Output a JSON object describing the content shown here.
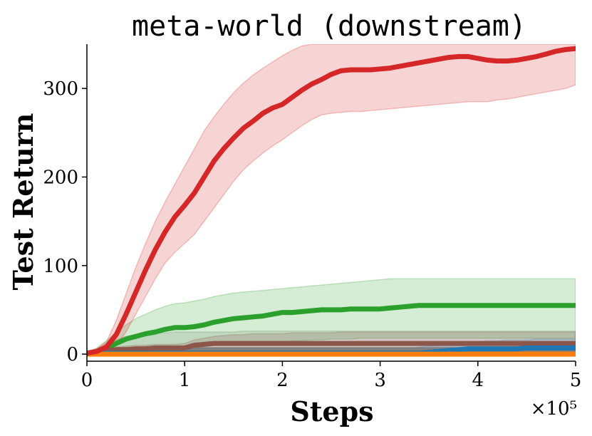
{
  "chart_data": {
    "type": "line",
    "title": "meta-world (downstream)",
    "xlabel": "Steps",
    "ylabel": "Test Return",
    "x_scale_label": "×10⁵",
    "xlim": [
      0,
      5
    ],
    "ylim": [
      -8,
      350
    ],
    "x_ticks": [
      0,
      1,
      2,
      3,
      4,
      5
    ],
    "x_tick_labels": [
      "0",
      "1",
      "2",
      "3",
      "4",
      "5"
    ],
    "y_ticks": [
      0,
      100,
      200,
      300
    ],
    "y_tick_labels": [
      "0",
      "100",
      "200",
      "300"
    ],
    "grid": false,
    "legend": "none",
    "x": [
      0,
      0.1,
      0.2,
      0.3,
      0.4,
      0.5,
      0.6,
      0.7,
      0.8,
      0.9,
      1.0,
      1.1,
      1.2,
      1.3,
      1.4,
      1.5,
      1.6,
      1.7,
      1.8,
      1.9,
      2.0,
      2.1,
      2.2,
      2.3,
      2.4,
      2.5,
      2.6,
      2.7,
      2.8,
      2.9,
      3.0,
      3.1,
      3.2,
      3.3,
      3.4,
      3.5,
      3.6,
      3.7,
      3.8,
      3.9,
      4.0,
      4.1,
      4.2,
      4.3,
      4.4,
      4.5,
      4.6,
      4.7,
      4.8,
      4.9,
      5.0
    ],
    "series": [
      {
        "color": "#7f7f7f",
        "band_opacity": 0.2,
        "values": [
          1,
          2,
          4,
          5,
          5,
          5,
          5,
          5,
          5,
          5,
          5,
          5,
          5,
          5,
          5,
          5,
          5,
          5,
          5,
          5,
          5,
          5,
          5,
          5,
          5,
          5,
          5,
          5,
          5,
          5,
          5,
          5,
          5,
          5,
          5,
          5,
          5,
          5,
          5,
          5,
          5,
          5,
          5,
          5,
          5,
          5,
          5,
          5,
          5,
          5,
          5
        ],
        "lower": [
          0,
          1,
          2,
          2,
          2,
          2,
          2,
          2,
          2,
          2,
          2,
          2,
          2,
          2,
          2,
          2,
          2,
          2,
          2,
          2,
          2,
          2,
          2,
          2,
          2,
          2,
          2,
          2,
          2,
          2,
          2,
          2,
          2,
          2,
          2,
          2,
          2,
          2,
          2,
          2,
          2,
          2,
          2,
          2,
          2,
          2,
          2,
          2,
          2,
          2,
          2
        ],
        "upper": [
          2,
          5,
          12,
          16,
          20,
          22,
          23,
          24,
          24,
          25,
          25,
          25,
          25,
          25,
          25,
          25,
          26,
          26,
          26,
          26,
          26,
          26,
          26,
          26,
          26,
          26,
          26,
          26,
          26,
          26,
          26,
          26,
          26,
          26,
          26,
          26,
          26,
          26,
          26,
          26,
          26,
          26,
          26,
          26,
          26,
          26,
          26,
          26,
          26,
          26,
          26
        ]
      },
      {
        "color": "#2ca02c",
        "band_opacity": 0.2,
        "values": [
          1,
          3,
          7,
          12,
          17,
          20,
          23,
          25,
          28,
          30,
          30,
          31,
          33,
          36,
          38,
          40,
          41,
          42,
          43,
          45,
          47,
          47,
          48,
          49,
          50,
          50,
          50,
          51,
          51,
          51,
          51,
          52,
          53,
          54,
          55,
          55,
          55,
          55,
          55,
          55,
          55,
          55,
          55,
          55,
          55,
          55,
          55,
          55,
          55,
          55,
          55
        ],
        "lower": [
          0,
          1,
          2,
          3,
          4,
          5,
          6,
          7,
          7,
          8,
          8,
          9,
          10,
          10,
          11,
          11,
          12,
          12,
          13,
          13,
          14,
          15,
          15,
          16,
          16,
          17,
          17,
          17,
          18,
          18,
          18,
          18,
          18,
          18,
          18,
          18,
          18,
          18,
          18,
          18,
          18,
          18,
          18,
          18,
          18,
          18,
          18,
          18,
          18,
          18,
          18
        ],
        "upper": [
          2,
          7,
          15,
          25,
          33,
          40,
          45,
          50,
          54,
          57,
          58,
          60,
          62,
          65,
          67,
          69,
          70,
          71,
          72,
          73,
          74,
          75,
          76,
          77,
          78,
          79,
          80,
          81,
          82,
          83,
          84,
          85,
          85,
          85,
          85,
          85,
          85,
          85,
          85,
          85,
          85,
          85,
          85,
          85,
          85,
          85,
          85,
          85,
          85,
          85,
          85
        ]
      },
      {
        "color": "#8c564b",
        "band_opacity": 0.2,
        "values": [
          1,
          3,
          4,
          5,
          5,
          6,
          6,
          7,
          7,
          7,
          7,
          10,
          11,
          12,
          12,
          12,
          12,
          12,
          12,
          12,
          12,
          12,
          12,
          12,
          12,
          12,
          12,
          12,
          12,
          12,
          12,
          12,
          12,
          12,
          12,
          12,
          12,
          12,
          12,
          12,
          12,
          12,
          12,
          12,
          12,
          12,
          12,
          12,
          12,
          12,
          12
        ],
        "lower": [
          0,
          1,
          2,
          3,
          3,
          3,
          4,
          4,
          4,
          4,
          4,
          5,
          5,
          6,
          6,
          6,
          6,
          6,
          6,
          6,
          6,
          6,
          6,
          6,
          6,
          6,
          6,
          6,
          6,
          6,
          6,
          6,
          6,
          6,
          6,
          6,
          6,
          6,
          6,
          6,
          6,
          6,
          6,
          6,
          6,
          6,
          6,
          6,
          6,
          6,
          6
        ],
        "upper": [
          2,
          5,
          7,
          8,
          9,
          10,
          10,
          11,
          11,
          11,
          12,
          16,
          18,
          20,
          21,
          22,
          22,
          23,
          23,
          23,
          23,
          24,
          24,
          24,
          24,
          24,
          25,
          25,
          25,
          25,
          25,
          25,
          25,
          25,
          25,
          25,
          25,
          25,
          25,
          25,
          25,
          25,
          25,
          25,
          25,
          25,
          25,
          25,
          25,
          25,
          25
        ]
      },
      {
        "color": "#1f77b4",
        "band_opacity": 0.2,
        "values": [
          1,
          1,
          1,
          1,
          1,
          1,
          1,
          1,
          1,
          1,
          1,
          1,
          1,
          1,
          1,
          1,
          1,
          1,
          1,
          1,
          1,
          1,
          1,
          1,
          1,
          1,
          1,
          1,
          1,
          1,
          1,
          1,
          1,
          1,
          1,
          2,
          3,
          4,
          5,
          6,
          6,
          6,
          6,
          6,
          6,
          7,
          7,
          7,
          7,
          7,
          7
        ],
        "lower": [
          0,
          0,
          0,
          0,
          0,
          0,
          0,
          0,
          0,
          0,
          0,
          0,
          0,
          0,
          0,
          0,
          0,
          0,
          0,
          0,
          0,
          0,
          0,
          0,
          0,
          0,
          0,
          0,
          0,
          0,
          0,
          0,
          0,
          0,
          0,
          0,
          0,
          0,
          0,
          0,
          0,
          0,
          0,
          0,
          0,
          0,
          0,
          0,
          0,
          0,
          0
        ],
        "upper": [
          2,
          2,
          2,
          2,
          2,
          2,
          2,
          2,
          2,
          2,
          2,
          2,
          2,
          2,
          2,
          2,
          2,
          2,
          2,
          2,
          2,
          2,
          2,
          2,
          2,
          3,
          3,
          3,
          3,
          4,
          4,
          5,
          6,
          7,
          8,
          9,
          10,
          11,
          12,
          13,
          14,
          15,
          15,
          16,
          16,
          16,
          17,
          17,
          17,
          17,
          17
        ]
      },
      {
        "color": "#ff7f0e",
        "band_opacity": 0.2,
        "values": [
          0,
          0,
          0,
          0,
          0,
          0,
          0,
          0,
          0,
          0,
          0,
          0,
          0,
          0,
          0,
          0,
          0,
          0,
          0,
          0,
          0,
          0,
          0,
          0,
          0,
          0,
          0,
          0,
          0,
          0,
          0,
          0,
          0,
          0,
          0,
          0,
          0,
          0,
          0,
          0,
          0,
          0,
          0,
          0,
          0,
          0,
          0,
          0,
          0,
          0,
          0
        ],
        "lower": [
          0,
          0,
          0,
          0,
          0,
          0,
          0,
          0,
          0,
          0,
          0,
          0,
          0,
          0,
          0,
          0,
          0,
          0,
          0,
          0,
          0,
          0,
          0,
          0,
          0,
          0,
          0,
          0,
          0,
          0,
          0,
          0,
          0,
          0,
          0,
          0,
          0,
          0,
          0,
          0,
          0,
          0,
          0,
          0,
          0,
          0,
          0,
          0,
          0,
          0,
          0
        ],
        "upper": [
          1,
          1,
          1,
          1,
          1,
          1,
          1,
          1,
          1,
          1,
          1,
          1,
          1,
          1,
          1,
          1,
          1,
          1,
          1,
          1,
          1,
          1,
          1,
          1,
          1,
          1,
          1,
          1,
          1,
          1,
          1,
          1,
          1,
          1,
          1,
          1,
          1,
          1,
          1,
          1,
          1,
          1,
          1,
          1,
          1,
          1,
          1,
          1,
          1,
          1,
          1
        ]
      },
      {
        "color": "#d62728",
        "band_opacity": 0.2,
        "values": [
          1,
          3,
          8,
          22,
          45,
          70,
          95,
          118,
          138,
          155,
          168,
          182,
          200,
          218,
          232,
          244,
          255,
          263,
          272,
          278,
          282,
          290,
          298,
          305,
          310,
          316,
          320,
          321,
          321,
          321,
          322,
          323,
          325,
          327,
          329,
          331,
          333,
          335,
          336,
          336,
          334,
          332,
          331,
          331,
          332,
          334,
          336,
          339,
          342,
          344,
          345
        ],
        "lower": [
          0,
          1,
          3,
          10,
          25,
          45,
          65,
          85,
          103,
          115,
          125,
          135,
          150,
          165,
          180,
          195,
          208,
          218,
          227,
          235,
          242,
          250,
          258,
          265,
          270,
          272,
          273,
          274,
          274,
          275,
          276,
          277,
          278,
          279,
          280,
          281,
          282,
          283,
          284,
          285,
          285,
          285,
          287,
          288,
          290,
          292,
          294,
          296,
          298,
          300,
          304
        ],
        "upper": [
          2,
          6,
          14,
          38,
          68,
          98,
          125,
          150,
          172,
          192,
          212,
          232,
          252,
          268,
          282,
          295,
          306,
          315,
          323,
          330,
          337,
          343,
          348,
          350,
          350,
          350,
          350,
          350,
          350,
          350,
          350,
          350,
          350,
          350,
          350,
          350,
          350,
          350,
          350,
          350,
          350,
          350,
          350,
          350,
          350,
          350,
          350,
          350,
          350,
          350,
          350
        ]
      }
    ]
  }
}
